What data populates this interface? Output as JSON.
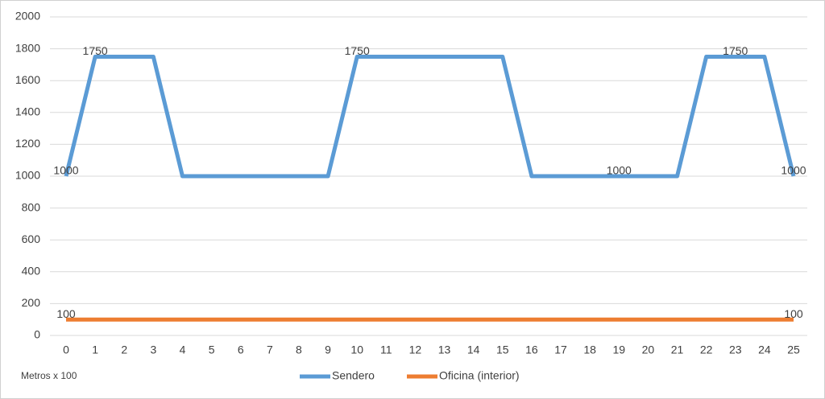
{
  "chart_data": {
    "type": "line",
    "x": [
      0,
      1,
      2,
      3,
      4,
      5,
      6,
      7,
      8,
      9,
      10,
      11,
      12,
      13,
      14,
      15,
      16,
      17,
      18,
      19,
      20,
      21,
      22,
      23,
      24,
      25
    ],
    "xlim": [
      0,
      25
    ],
    "xticks": [
      0,
      1,
      2,
      3,
      4,
      5,
      6,
      7,
      8,
      9,
      10,
      11,
      12,
      13,
      14,
      15,
      16,
      17,
      18,
      19,
      20,
      21,
      22,
      23,
      24,
      25
    ],
    "ylim": [
      0,
      2000
    ],
    "yticks": [
      0,
      200,
      400,
      600,
      800,
      1000,
      1200,
      1400,
      1600,
      1800,
      2000
    ],
    "grid": true,
    "legend": "bottom",
    "annotation": "Metros x 100",
    "series": [
      {
        "name": "Sendero",
        "color": "#5b9bd5",
        "values": [
          1000,
          1750,
          1750,
          1750,
          1000,
          1000,
          1000,
          1000,
          1000,
          1000,
          1750,
          1750,
          1750,
          1750,
          1750,
          1750,
          1000,
          1000,
          1000,
          1000,
          1000,
          1000,
          1750,
          1750,
          1750,
          1000
        ],
        "data_labels": [
          0,
          1,
          10,
          19,
          23,
          25
        ]
      },
      {
        "name": "Oficina (interior)",
        "color": "#ed7d31",
        "values": [
          100,
          100,
          100,
          100,
          100,
          100,
          100,
          100,
          100,
          100,
          100,
          100,
          100,
          100,
          100,
          100,
          100,
          100,
          100,
          100,
          100,
          100,
          100,
          100,
          100,
          100
        ],
        "data_labels": [
          0,
          25
        ]
      }
    ]
  }
}
